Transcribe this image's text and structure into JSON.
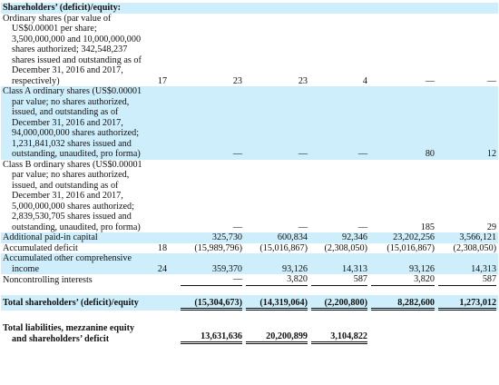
{
  "section_heading": "Shareholders’ (deficit)/equity:",
  "rows": [
    {
      "key": "ordinary",
      "label": "Ordinary shares (par value of US$0.00001 per share; 3,500,000,000 and 10,000,000,000 shares authorized; 342,548,237 shares issued and outstanding as of December 31, 2016 and 2017, respectively)",
      "note": "17",
      "c1": "23",
      "c2": "23",
      "c3": "4",
      "c4": "—",
      "c5": "—"
    },
    {
      "key": "class-a",
      "label": "Class A ordinary shares (US$0.00001 par value; no shares authorized, issued, and outstanding as of December 31, 2016 and 2017, 94,000,000,000 shares authorized; 1,231,841,032 shares issued and outstanding, unaudited, pro forma)",
      "note": "",
      "c1": "—",
      "c2": "—",
      "c3": "—",
      "c4": "80",
      "c5": "12"
    },
    {
      "key": "class-b",
      "label": "Class B ordinary shares (US$0.00001 par value; no shares authorized, issued, and outstanding as of December 31, 2016 and 2017, 5,000,000,000 shares authorized; 2,839,530,705 shares issued and outstanding, unaudited, pro forma)",
      "note": "",
      "c1": "—",
      "c2": "—",
      "c3": "—",
      "c4": "185",
      "c5": "29"
    },
    {
      "key": "apic",
      "label": "Additional paid-in capital",
      "note": "",
      "c1": "325,730",
      "c2": "600,834",
      "c3": "92,346",
      "c4": "23,202,256",
      "c5": "3,566,121"
    },
    {
      "key": "accum-deficit",
      "label": "Accumulated deficit",
      "note": "18",
      "c1": "(15,989,796)",
      "c2": "(15,016,867)",
      "c3": "(2,308,050)",
      "c4": "(15,016,867)",
      "c5": "(2,308,050)"
    },
    {
      "key": "aoci",
      "label": "Accumulated other comprehensive income",
      "note": "24",
      "c1": "359,370",
      "c2": "93,126",
      "c3": "14,313",
      "c4": "93,126",
      "c5": "14,313"
    },
    {
      "key": "nci",
      "label": "Noncontrolling interests",
      "note": "",
      "c1": "—",
      "c2": "3,820",
      "c3": "587",
      "c4": "3,820",
      "c5": "587"
    }
  ],
  "total_equity": {
    "label": "Total shareholders’ (deficit)/equity",
    "c1": "(15,304,673)",
    "c2": "(14,319,064)",
    "c3": "(2,200,800)",
    "c4": "8,282,600",
    "c5": "1,273,012"
  },
  "total_liabilities": {
    "label": "Total liabilities, mezzanine equity and shareholders’ deficit",
    "c1": "13,631,636",
    "c2": "20,200,899",
    "c3": "3,104,822"
  },
  "colors": {
    "shade": "#cdeefa",
    "text": "#111111"
  }
}
